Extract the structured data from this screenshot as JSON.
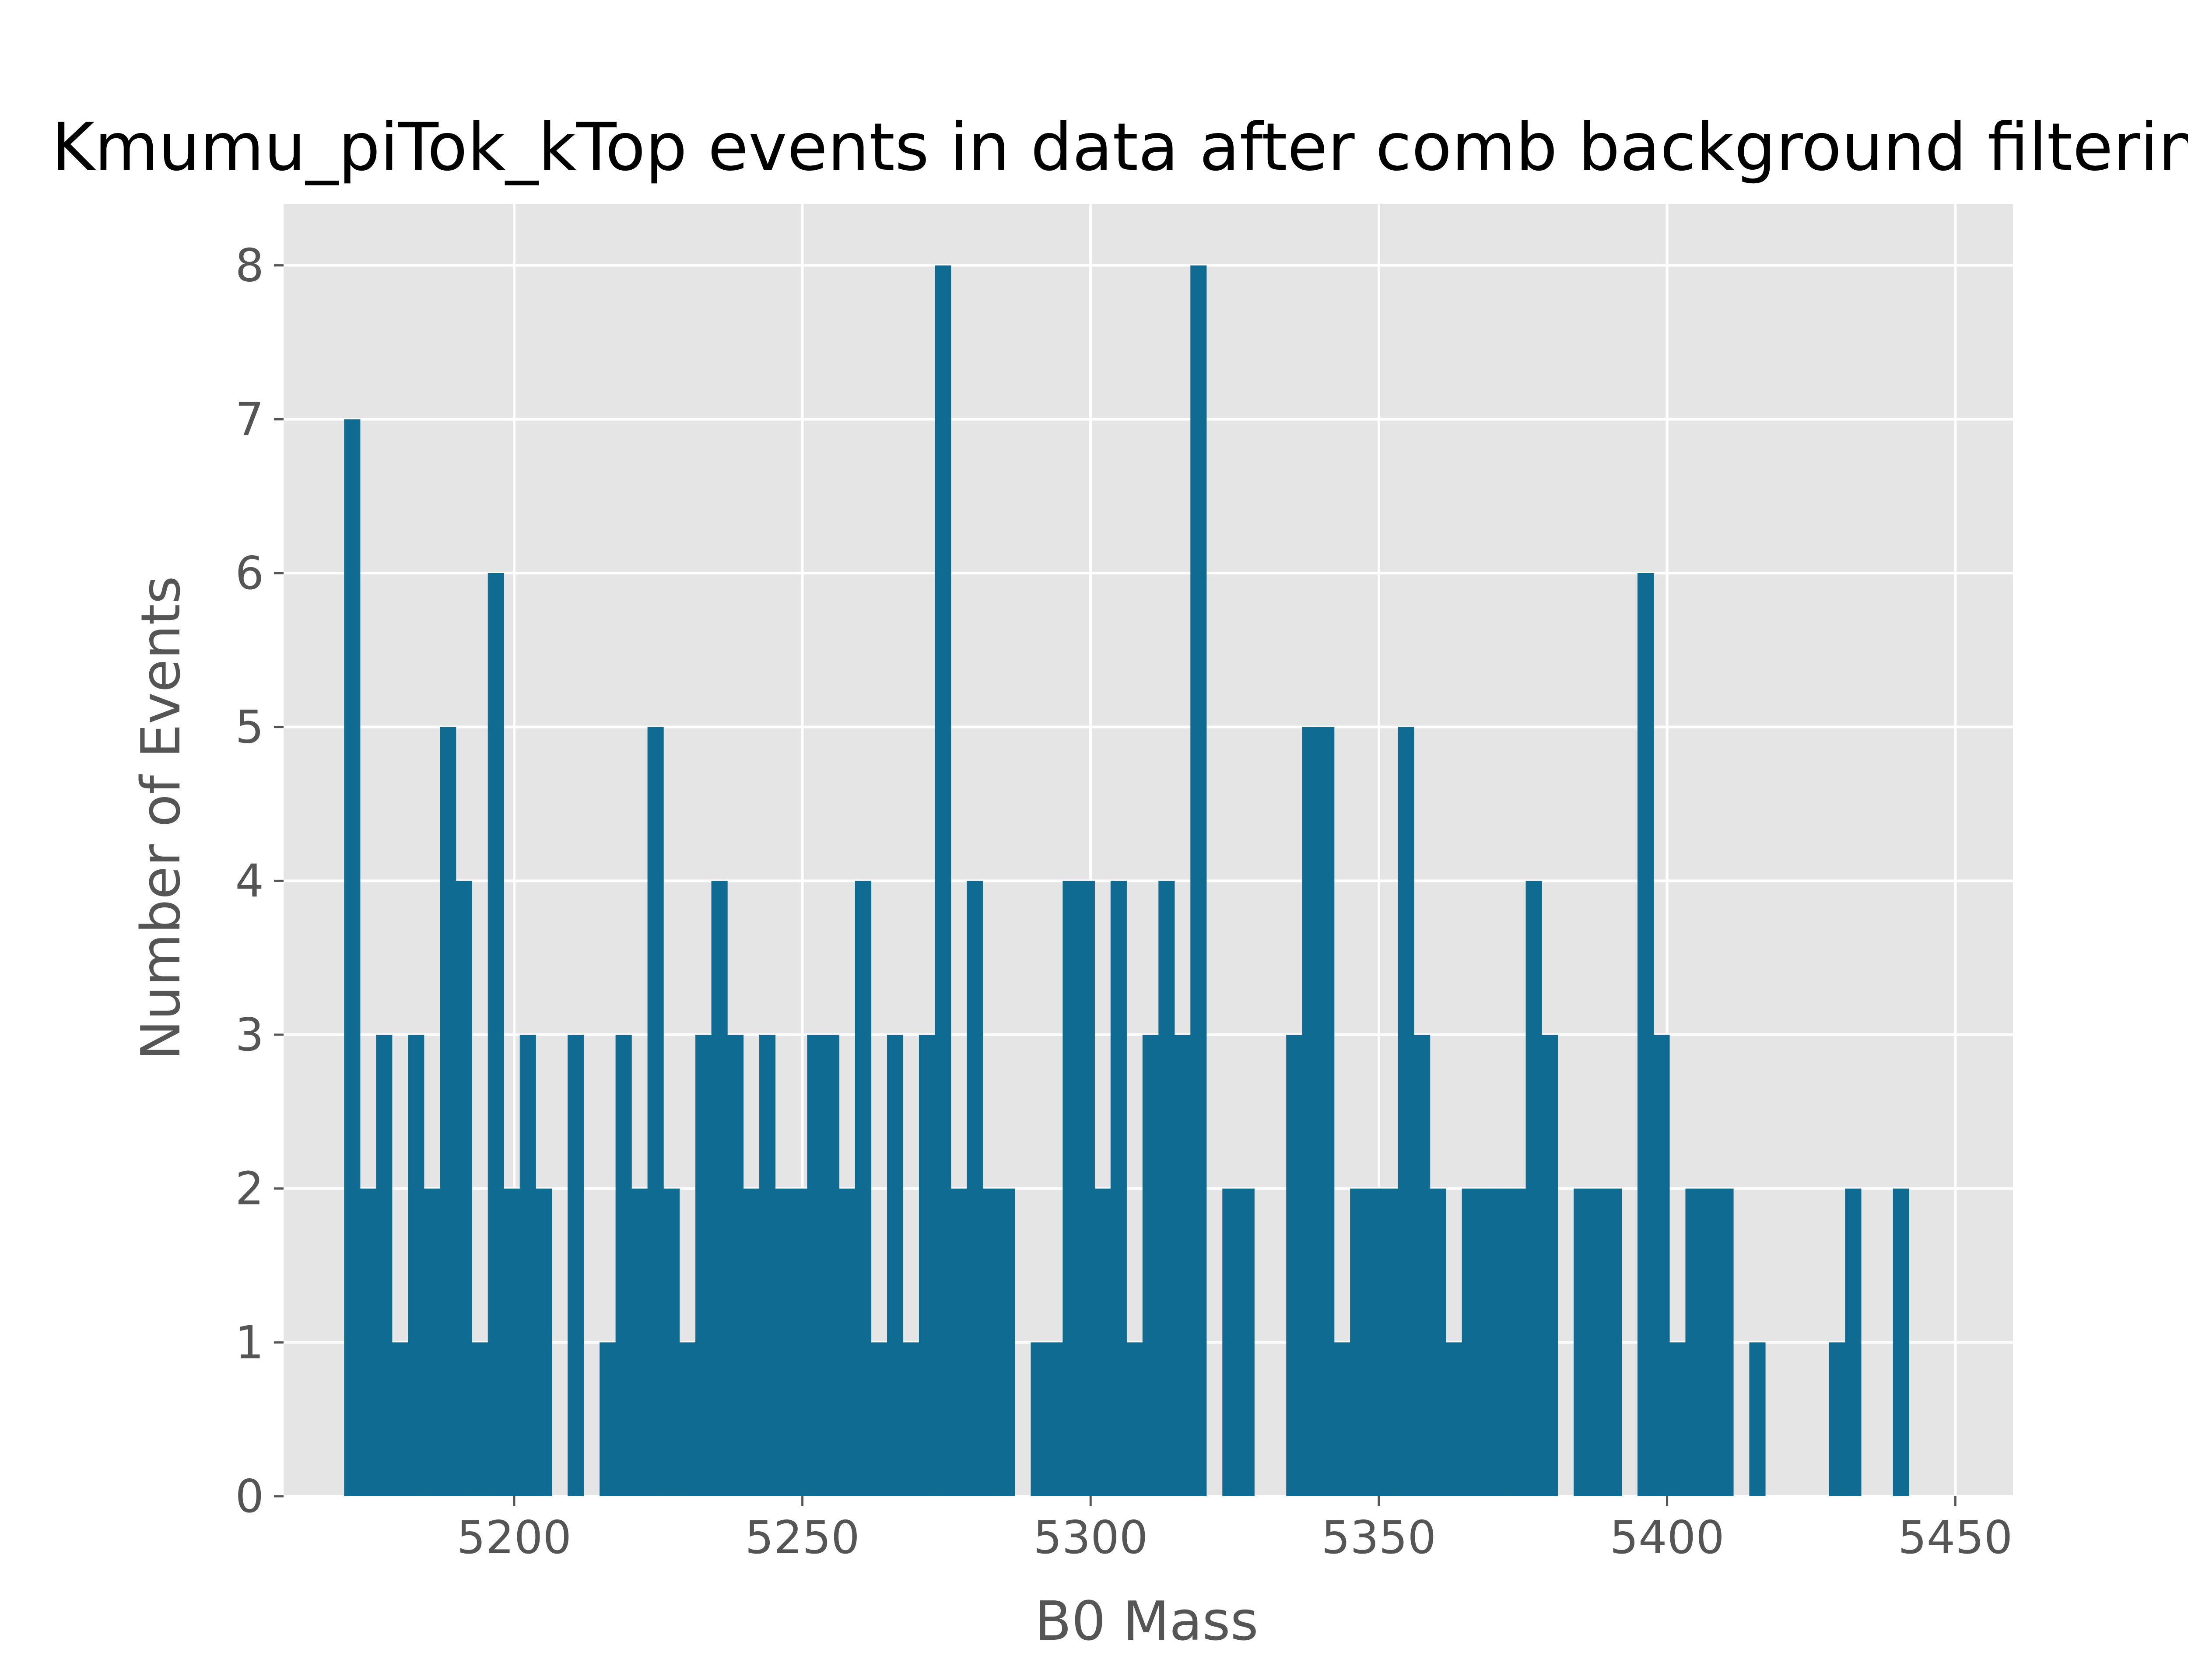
{
  "chart_data": {
    "type": "bar",
    "title": "Kmumu_piTok_kTop events in data after comb background filtering",
    "xlabel": "B0 Mass",
    "ylabel": "Number of Events",
    "xlim": [
      5160,
      5460
    ],
    "ylim": [
      0,
      8.4
    ],
    "xticks": [
      5200,
      5250,
      5300,
      5350,
      5400,
      5450
    ],
    "yticks": [
      0,
      1,
      2,
      3,
      4,
      5,
      6,
      7,
      8
    ],
    "grid": true,
    "bin_width": 2.77,
    "bin_start": 5170.5,
    "values": [
      7,
      2,
      3,
      1,
      3,
      2,
      5,
      4,
      1,
      6,
      2,
      3,
      2,
      0,
      3,
      0,
      1,
      3,
      2,
      5,
      2,
      1,
      3,
      4,
      3,
      2,
      3,
      2,
      2,
      3,
      3,
      2,
      4,
      1,
      3,
      1,
      3,
      8,
      2,
      4,
      2,
      2,
      0,
      1,
      1,
      4,
      4,
      2,
      4,
      1,
      3,
      4,
      3,
      8,
      0,
      2,
      2,
      0,
      0,
      3,
      5,
      5,
      1,
      2,
      2,
      2,
      5,
      3,
      2,
      1,
      2,
      2,
      2,
      2,
      4,
      3,
      0,
      2,
      2,
      2,
      0,
      6,
      3,
      1,
      2,
      2,
      2,
      0,
      1,
      0,
      0,
      0,
      0,
      1,
      2,
      0,
      0,
      2
    ],
    "colors": {
      "bar": "#0f6b91",
      "background": "#e5e5e5",
      "grid": "#ffffff",
      "text": "#555555"
    }
  }
}
